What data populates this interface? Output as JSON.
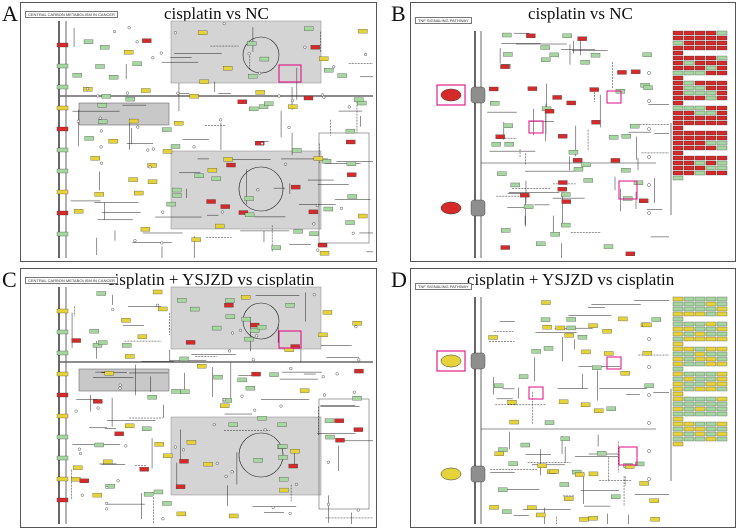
{
  "panels": [
    {
      "label": "A",
      "title": "cisplatin vs NC",
      "pathway": "CENTRAL CARBON METABOLISM IN CANCER"
    },
    {
      "label": "B",
      "title": "cisplatin vs NC",
      "pathway": "TNF SIGNALING PATHWAY"
    },
    {
      "label": "C",
      "title": "cisplatin + YSJZD vs cisplatin",
      "pathway": "CENTRAL CARBON METABOLISM IN CANCER"
    },
    {
      "label": "D",
      "title": "cisplatin + YSJZD vs cisplatin",
      "pathway": "TNF SIGNALING PATHWAY"
    }
  ],
  "colors": {
    "up": "#d42a2a",
    "down": "#e6d33a",
    "nochange": "#a6d7a0",
    "highlight": "#e0208c",
    "mito": "#d4d4d4",
    "line": "#222222"
  }
}
